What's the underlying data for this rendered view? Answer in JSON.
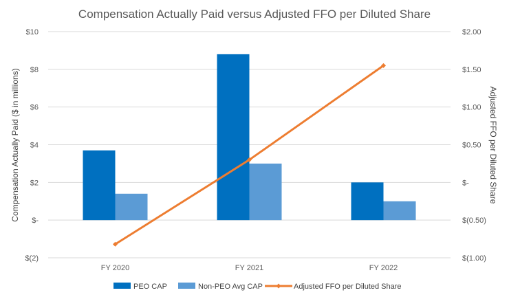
{
  "chart_data": {
    "type": "bar",
    "title": "Compensation Actually Paid versus Adjusted FFO per Diluted Share",
    "categories": [
      "FY 2020",
      "FY 2021",
      "FY 2022"
    ],
    "ylabel": "Compensation Actually Paid ($ in millions)",
    "y2label": "Adjusted FFO per Diluted Share",
    "ylim": [
      -2,
      10
    ],
    "y2lim": [
      -1.0,
      2.0
    ],
    "yticks": [
      {
        "value": 10,
        "label": "$10"
      },
      {
        "value": 8,
        "label": "$8"
      },
      {
        "value": 6,
        "label": "$6"
      },
      {
        "value": 4,
        "label": "$4"
      },
      {
        "value": 2,
        "label": "$2"
      },
      {
        "value": 0,
        "label": "$-"
      },
      {
        "value": -2,
        "label": "$(2)"
      }
    ],
    "y2ticks": [
      {
        "value": 2.0,
        "label": "$2.00"
      },
      {
        "value": 1.5,
        "label": "$1.50"
      },
      {
        "value": 1.0,
        "label": "$1.00"
      },
      {
        "value": 0.5,
        "label": "$0.50"
      },
      {
        "value": 0.0,
        "label": "$-"
      },
      {
        "value": -0.5,
        "label": "$(0.50)"
      },
      {
        "value": -1.0,
        "label": "$(1.00)"
      }
    ],
    "series": [
      {
        "name": "PEO CAP",
        "type": "bar",
        "axis": "left",
        "color": "#0070C0",
        "values": [
          3.7,
          8.8,
          2.0
        ]
      },
      {
        "name": "Non-PEO Avg CAP",
        "type": "bar",
        "axis": "left",
        "color": "#5B9BD5",
        "values": [
          1.4,
          3.0,
          1.0
        ]
      },
      {
        "name": "Adjusted FFO per Diluted Share",
        "type": "line",
        "axis": "right",
        "color": "#ED7D31",
        "values": [
          -0.82,
          0.3,
          1.55
        ]
      }
    ],
    "grid": true,
    "legend_position": "bottom"
  }
}
